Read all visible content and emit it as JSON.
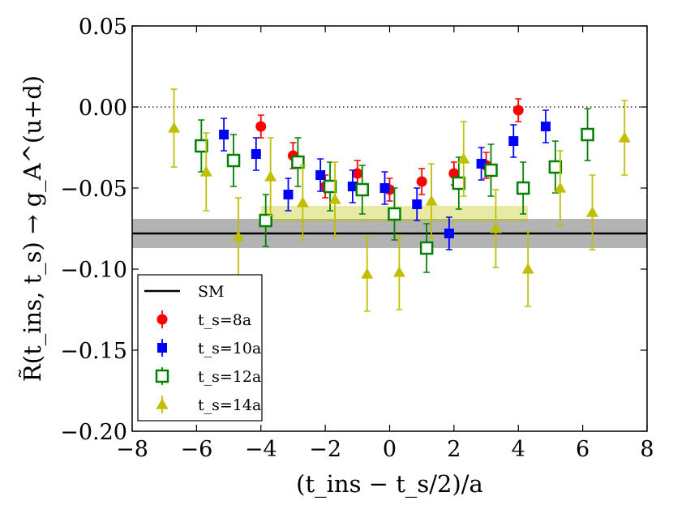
{
  "chart_data": {
    "type": "scatter",
    "title": "",
    "xlabel": "(t_ins − t_s/2)/a",
    "ylabel": "R̃(t_ins, t_s) → g_A^(u+d)",
    "xlim": [
      -8,
      8
    ],
    "ylim": [
      -0.2,
      0.05
    ],
    "xticks": [
      "−8",
      "−6",
      "−4",
      "−2",
      "0",
      "2",
      "4",
      "6",
      "8"
    ],
    "yticks": [
      "−0.20",
      "−0.15",
      "−0.10",
      "−0.05",
      "0.00",
      "0.05"
    ],
    "grid": false,
    "legend_position": "lower-left",
    "reference_line": {
      "y": 0.0,
      "style": "dotted"
    },
    "sm_band": {
      "label": "SM",
      "value": -0.078,
      "low": -0.087,
      "high": -0.069,
      "color": "#999999"
    },
    "fit_band": {
      "x": [
        -4,
        4.3
      ],
      "low": -0.071,
      "high": -0.061,
      "color": "#bfbf00"
    },
    "series": [
      {
        "name": "t_s=8a",
        "color": "#ff0000",
        "marker": "circle",
        "x": [
          -4,
          -3,
          -2,
          -1,
          0,
          1,
          2,
          3,
          4
        ],
        "y": [
          -0.012,
          -0.03,
          -0.049,
          -0.041,
          -0.051,
          -0.046,
          -0.041,
          -0.036,
          -0.002
        ],
        "err": [
          0.007,
          0.008,
          0.007,
          0.008,
          0.007,
          0.008,
          0.007,
          0.008,
          0.007
        ]
      },
      {
        "name": "t_s=10a",
        "color": "#0000ff",
        "marker": "square",
        "x": [
          -5,
          -4,
          -3,
          -2,
          -1,
          0,
          1,
          2,
          3,
          4,
          5
        ],
        "y": [
          -0.017,
          -0.029,
          -0.054,
          -0.042,
          -0.049,
          -0.05,
          -0.06,
          -0.078,
          -0.035,
          -0.021,
          -0.012
        ],
        "err": [
          0.01,
          0.01,
          0.01,
          0.01,
          0.01,
          0.01,
          0.01,
          0.01,
          0.01,
          0.01,
          0.01
        ]
      },
      {
        "name": "t_s=12a",
        "color": "#008000",
        "marker": "square-open",
        "x": [
          -6,
          -5,
          -4,
          -3,
          -2,
          -1,
          0,
          1,
          2,
          3,
          4,
          5,
          6
        ],
        "y": [
          -0.024,
          -0.033,
          -0.07,
          -0.034,
          -0.049,
          -0.051,
          -0.066,
          -0.087,
          -0.047,
          -0.039,
          -0.05,
          -0.037,
          -0.017
        ],
        "err": [
          0.016,
          0.016,
          0.016,
          0.015,
          0.015,
          0.015,
          0.016,
          0.015,
          0.016,
          0.016,
          0.016,
          0.016,
          0.016
        ]
      },
      {
        "name": "t_s=14a",
        "color": "#bfbf00",
        "marker": "triangle",
        "x": [
          -7,
          -6,
          -5,
          -4,
          -3,
          -2,
          -1,
          0,
          1,
          2,
          3,
          4,
          5,
          6,
          7
        ],
        "y": [
          -0.013,
          -0.04,
          -0.08,
          -0.043,
          -0.059,
          -0.057,
          -0.103,
          -0.102,
          -0.058,
          -0.032,
          -0.075,
          -0.1,
          -0.05,
          -0.065,
          -0.019
        ],
        "err": [
          0.024,
          0.024,
          0.024,
          0.024,
          0.023,
          0.023,
          0.023,
          0.023,
          0.023,
          0.023,
          0.024,
          0.023,
          0.023,
          0.023,
          0.023
        ]
      }
    ]
  }
}
